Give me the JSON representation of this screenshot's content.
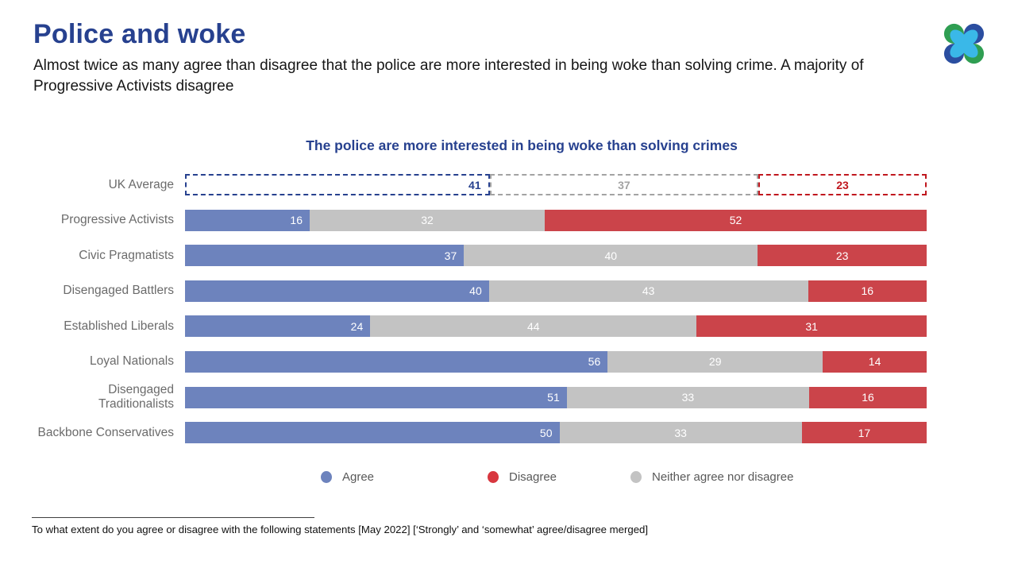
{
  "page": {
    "title": "Police and woke",
    "subtitle": "Almost twice as many agree than disagree that the police are more interested in being woke than solving crime. A majority of Progressive Activists disagree",
    "footnote": "To what extent do you agree or disagree with the following statements [May 2022] [‘Strongly’ and ‘somewhat’ agree/disagree merged]"
  },
  "brand": {
    "logo": "more-in-common-logo",
    "logo_colors": {
      "green": "#2f9e52",
      "blue": "#2b4ea0",
      "cyan": "#3ab8e8"
    }
  },
  "chart_data": {
    "type": "bar",
    "variant": "stacked-horizontal",
    "title": "The police are more interested in being woke than solving crimes",
    "value_unit": "percent",
    "axis": {
      "x_min": 0,
      "x_max": 100,
      "gridlines": false
    },
    "segment_order": [
      "agree",
      "neither",
      "disagree"
    ],
    "colors": {
      "agree": "#6d83bd",
      "neither": "#c3c3c3",
      "disagree": "#cb444a"
    },
    "outline_colors": {
      "agree": "#27418f",
      "neither": "#a3a3a3",
      "disagree": "#c0171e"
    },
    "legend": [
      {
        "key": "agree",
        "label": "Agree",
        "color": "#6d83bd"
      },
      {
        "key": "disagree",
        "label": "Disagree",
        "color": "#d8373f"
      },
      {
        "key": "neither",
        "label": "Neither agree nor disagree",
        "color": "#c3c3c3"
      }
    ],
    "rows": [
      {
        "label": "UK Average",
        "style": "outline",
        "agree": 41,
        "neither": 37,
        "disagree": 23
      },
      {
        "label": "Progressive Activists",
        "style": "solid",
        "agree": 16,
        "neither": 32,
        "disagree": 52
      },
      {
        "label": "Civic Pragmatists",
        "style": "solid",
        "agree": 37,
        "neither": 40,
        "disagree": 23
      },
      {
        "label": "Disengaged Battlers",
        "style": "solid",
        "agree": 40,
        "neither": 43,
        "disagree": 16
      },
      {
        "label": "Established Liberals",
        "style": "solid",
        "agree": 24,
        "neither": 44,
        "disagree": 31
      },
      {
        "label": "Loyal Nationals",
        "style": "solid",
        "agree": 56,
        "neither": 29,
        "disagree": 14
      },
      {
        "label": "Disengaged Traditionalists",
        "style": "solid",
        "agree": 51,
        "neither": 33,
        "disagree": 16
      },
      {
        "label": "Backbone Conservatives",
        "style": "solid",
        "agree": 50,
        "neither": 33,
        "disagree": 17
      }
    ]
  }
}
